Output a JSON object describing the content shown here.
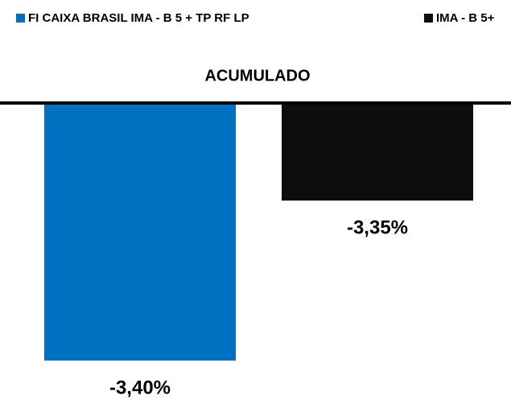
{
  "chart_data": {
    "type": "bar",
    "categories": [
      "ACUMULADO"
    ],
    "series": [
      {
        "name": "FI CAIXA BRASIL IMA - B 5 + TP RF LP",
        "color": "#0070c0",
        "values": [
          -3.4
        ],
        "value_labels": [
          "-3,40%"
        ]
      },
      {
        "name": "IMA - B 5+",
        "color": "#0d0d0d",
        "values": [
          -3.35
        ],
        "value_labels": [
          "-3,35%"
        ]
      }
    ],
    "ylim": [
      -3.41,
      -3.32
    ],
    "legend": "top"
  }
}
